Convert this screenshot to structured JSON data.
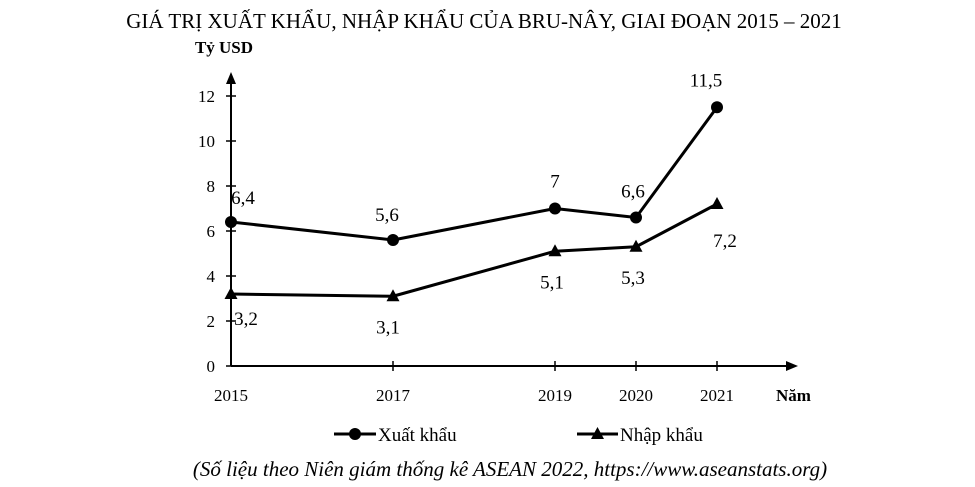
{
  "chart_data": {
    "type": "line",
    "title": "GIÁ TRỊ XUẤT KHẨU, NHẬP KHẨU CỦA BRU-NÂY, GIAI ĐOẠN 2015 – 2021",
    "ylabel": "Tỷ USD",
    "xlabel": "Năm",
    "source": "(Số liệu theo Niên giám thống kê ASEAN 2022, https://www.aseanstats.org)",
    "x": [
      2015,
      2017,
      2019,
      2020,
      2021
    ],
    "x_tick_labels": [
      "2015",
      "2017",
      "2019",
      "2020",
      "2021"
    ],
    "y_ticks": [
      0,
      2,
      4,
      6,
      8,
      10,
      12
    ],
    "ylim": [
      0,
      13.2
    ],
    "grid": false,
    "legend_position": "bottom-center",
    "series": [
      {
        "name": "Xuất khẩu",
        "marker": "circle",
        "values": [
          6.4,
          5.6,
          7,
          6.6,
          11.5
        ],
        "labels": [
          "6,4",
          "5,6",
          "7",
          "6,6",
          "11,5"
        ],
        "color": "#000000"
      },
      {
        "name": "Nhập khẩu",
        "marker": "triangle",
        "values": [
          3.2,
          3.1,
          5.1,
          5.3,
          7.2
        ],
        "labels": [
          "3,2",
          "3,1",
          "5,1",
          "5,3",
          "7,2"
        ],
        "color": "#000000"
      }
    ]
  }
}
